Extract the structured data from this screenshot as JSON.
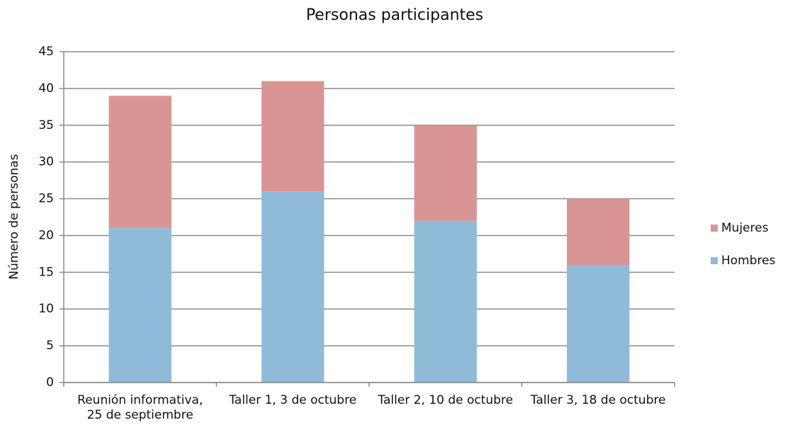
{
  "chart_data": {
    "type": "stacked_bar",
    "title": "Personas participantes",
    "y_label": "Número de personas",
    "categories": [
      "Reunión informativa, 25 de septiembre",
      "Taller 1, 3 de octubre",
      "Taller 2, 10 de octubre",
      "Taller 3, 18 de octubre"
    ],
    "series": [
      {
        "name": "Hombres",
        "color": "#8fbbd9",
        "values": [
          21,
          26,
          22,
          16
        ]
      },
      {
        "name": "Mujeres",
        "color": "#d99594",
        "values": [
          18,
          15,
          13,
          9
        ]
      }
    ],
    "ylim": [
      0,
      45
    ],
    "yticks": [
      0,
      5,
      10,
      15,
      20,
      25,
      30,
      35,
      40,
      45
    ],
    "grid": true,
    "legend": "right"
  }
}
